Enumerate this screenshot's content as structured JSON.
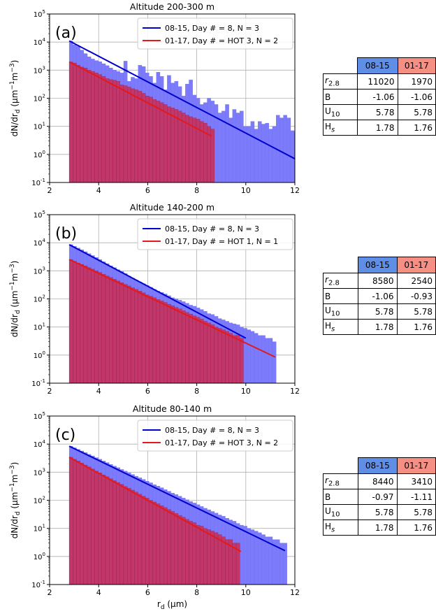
{
  "colors": {
    "series1": "#0000cc",
    "series2": "#e31a1c",
    "bar1": "#7b7bfb",
    "bar2": "#c2366a",
    "bar3": "#f57c7c",
    "header1": "#5f8ee6",
    "header2": "#f58f84"
  },
  "chart_data": [
    {
      "type": "bar",
      "panel_label": "(a)",
      "title": "Altitude  200-300 m",
      "xlabel": "",
      "ylabel": "dN/dr_d (µm^-1 m^-3)",
      "xlim": [
        2,
        12
      ],
      "ylim": [
        0.1,
        100000
      ],
      "yscale": "log",
      "grid": true,
      "legend_position": "upper-right",
      "series": [
        {
          "name": "08-15, Day # = 8, N = 3",
          "fit": {
            "x": [
              2.8,
              12.0
            ],
            "y": [
              11020,
              0.7
            ]
          },
          "bins": {
            "x0": 2.8,
            "width": 0.148,
            "values": [
              11000,
              8000,
              7000,
              5200,
              3900,
              3000,
              2500,
              2200,
              2000,
              1700,
              1450,
              1200,
              1000,
              900,
              800,
              2100,
              400,
              560,
              500,
              1500,
              1350,
              800,
              600,
              350,
              850,
              600,
              200,
              650,
              350,
              400,
              260,
              120,
              320,
              450,
              130,
              100,
              60,
              70,
              100,
              80,
              60,
              30,
              35,
              60,
              20,
              40,
              30,
              35,
              10,
              10,
              15,
              8,
              15,
              12,
              13,
              8,
              10,
              25,
              20,
              25,
              20,
              7,
              6,
              3,
              2
            ]
          }
        },
        {
          "name": "01-17, Day # = HOT 3, N = 2",
          "fit": {
            "x": [
              2.8,
              8.6
            ],
            "y": [
              1970,
              4.5
            ]
          },
          "bins": {
            "x0": 2.8,
            "width": 0.148,
            "values": [
              1970,
              1800,
              1500,
              1300,
              1200,
              1000,
              900,
              800,
              700,
              600,
              500,
              460,
              440,
              400,
              300,
              280,
              250,
              220,
              200,
              180,
              150,
              120,
              110,
              90,
              80,
              70,
              60,
              50,
              45,
              40,
              35,
              30,
              25,
              22,
              20,
              18,
              15,
              13,
              10,
              8
            ]
          }
        }
      ]
    },
    {
      "type": "bar",
      "panel_label": "(b)",
      "title": "Altitude  140-200 m",
      "xlabel": "",
      "ylabel": "dN/dr_d (µm^-1 m^-3)",
      "xlim": [
        2,
        12
      ],
      "ylim": [
        0.1,
        100000
      ],
      "yscale": "log",
      "grid": true,
      "legend_position": "upper-right",
      "series": [
        {
          "name": "08-15, Day # = 8, N = 3",
          "fit": {
            "x": [
              2.8,
              10.0
            ],
            "y": [
              8580,
              4.0
            ]
          },
          "bins": {
            "x0": 2.8,
            "width": 0.148,
            "values": [
              8580,
              7500,
              6500,
              5600,
              4800,
              4100,
              3500,
              3000,
              2500,
              2100,
              1800,
              1500,
              1300,
              1100,
              950,
              800,
              650,
              550,
              470,
              400,
              350,
              300,
              260,
              220,
              190,
              170,
              150,
              130,
              110,
              100,
              90,
              80,
              70,
              60,
              55,
              48,
              42,
              36,
              30,
              28,
              24,
              20,
              18,
              16,
              14,
              13,
              12,
              10,
              9,
              8,
              7,
              6,
              5,
              5,
              4,
              4,
              3
            ]
          }
        },
        {
          "name": "01-17, Day # = HOT 1, N = 1",
          "fit": {
            "x": [
              2.8,
              11.2
            ],
            "y": [
              2540,
              0.85
            ]
          },
          "bins": {
            "x0": 2.8,
            "width": 0.148,
            "values": [
              2540,
              2200,
              1900,
              1700,
              1500,
              1300,
              1150,
              1000,
              880,
              760,
              660,
              580,
              500,
              440,
              380,
              330,
              290,
              250,
              220,
              190,
              165,
              140,
              125,
              110,
              95,
              85,
              75,
              65,
              57,
              50,
              44,
              38,
              33,
              29,
              25,
              22,
              19,
              16,
              14,
              12,
              10,
              9,
              8,
              7,
              6,
              5,
              5,
              4
            ]
          }
        }
      ]
    },
    {
      "type": "bar",
      "panel_label": "(c)",
      "title": "Altitude  80-140 m",
      "xlabel": "r_d (µm)",
      "ylabel": "dN/dr_d (µm^-1 m^-3)",
      "xlim": [
        2,
        12
      ],
      "ylim": [
        0.1,
        100000
      ],
      "yscale": "log",
      "grid": true,
      "legend_position": "upper-right",
      "series": [
        {
          "name": "08-15, Day # = 8, N = 3",
          "fit": {
            "x": [
              2.8,
              11.6
            ],
            "y": [
              8440,
              1.6
            ]
          },
          "bins": {
            "x0": 2.8,
            "width": 0.148,
            "values": [
              8440,
              7400,
              6500,
              5700,
              5000,
              4300,
              3800,
              3300,
              2900,
              2500,
              2200,
              1900,
              1650,
              1450,
              1250,
              1100,
              950,
              830,
              720,
              630,
              550,
              480,
              420,
              360,
              320,
              280,
              240,
              210,
              180,
              160,
              140,
              120,
              105,
              90,
              80,
              70,
              60,
              52,
              46,
              40,
              35,
              30,
              27,
              23,
              20,
              18,
              15,
              13,
              12,
              10,
              9,
              8,
              7,
              6,
              5,
              5,
              4,
              4,
              3,
              3
            ]
          }
        },
        {
          "name": "01-17, Day # = HOT 3, N = 2",
          "fit": {
            "x": [
              2.8,
              9.8
            ],
            "y": [
              3410,
              1.5
            ]
          },
          "bins": {
            "x0": 2.8,
            "width": 0.148,
            "values": [
              3410,
              2900,
              2500,
              2100,
              1800,
              1550,
              1300,
              1100,
              950,
              800,
              690,
              590,
              500,
              430,
              370,
              310,
              270,
              230,
              195,
              165,
              140,
              120,
              100,
              87,
              75,
              64,
              55,
              47,
              40,
              34,
              29,
              25,
              21,
              18,
              16,
              13,
              12,
              10,
              9,
              8,
              7,
              6,
              5,
              4,
              4,
              3,
              3
            ]
          }
        }
      ]
    }
  ],
  "tables": [
    {
      "headers": [
        "08-15",
        "01-17"
      ],
      "rows": [
        {
          "label": "r2.8",
          "v1": "11020",
          "v2": "1970"
        },
        {
          "label": "B",
          "v1": "-1.06",
          "v2": "-1.06"
        },
        {
          "label": "U10",
          "v1": "5.78",
          "v2": "5.78"
        },
        {
          "label": "Hs",
          "v1": "1.78",
          "v2": "1.76"
        }
      ]
    },
    {
      "headers": [
        "08-15",
        "01-17"
      ],
      "rows": [
        {
          "label": "r2.8",
          "v1": "8580",
          "v2": "2540"
        },
        {
          "label": "B",
          "v1": "-1.06",
          "v2": "-0.93"
        },
        {
          "label": "U10",
          "v1": "5.78",
          "v2": "5.78"
        },
        {
          "label": "Hs",
          "v1": "1.78",
          "v2": "1.76"
        }
      ]
    },
    {
      "headers": [
        "08-15",
        "01-17"
      ],
      "rows": [
        {
          "label": "r2.8",
          "v1": "8440",
          "v2": "3410"
        },
        {
          "label": "B",
          "v1": "-0.97",
          "v2": "-1.11"
        },
        {
          "label": "U10",
          "v1": "5.78",
          "v2": "5.78"
        },
        {
          "label": "Hs",
          "v1": "1.78",
          "v2": "1.76"
        }
      ]
    }
  ],
  "xticks": [
    "2",
    "4",
    "6",
    "8",
    "10",
    "12"
  ],
  "yticks": [
    "10^-1",
    "10^0",
    "10^1",
    "10^2",
    "10^3",
    "10^4",
    "10^5"
  ]
}
